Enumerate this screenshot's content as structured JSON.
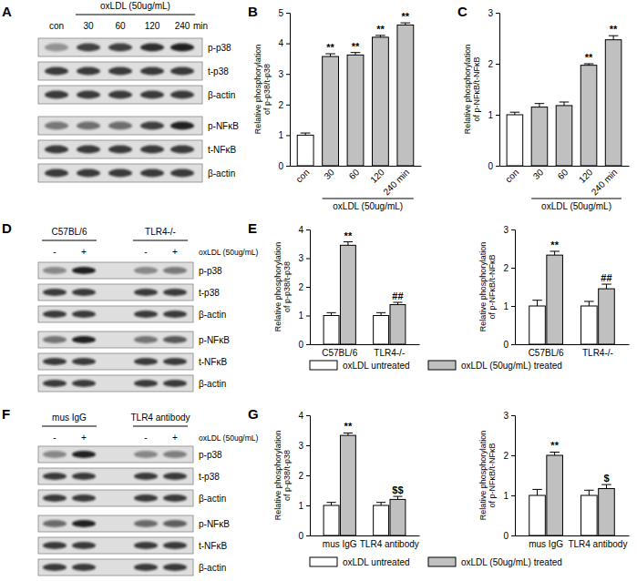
{
  "chart_data": [
    {
      "panel": "B",
      "type": "bar",
      "categories": [
        "con",
        "30",
        "60",
        "120",
        "240 min"
      ],
      "xlabel": "oxLDL (50ug/mL)",
      "ylabel": [
        "Relative phosphorylation",
        "of p-p38/t-p38"
      ],
      "values": [
        1.0,
        3.57,
        3.62,
        4.2,
        4.6
      ],
      "errors": [
        0.07,
        0.09,
        0.08,
        0.06,
        0.07
      ],
      "colors": [
        "#ffffff",
        "#c0c0c0",
        "#c0c0c0",
        "#c0c0c0",
        "#c0c0c0"
      ],
      "significance": [
        null,
        "**",
        "**",
        "**",
        "**"
      ],
      "ylim": [
        0,
        5
      ],
      "yticks": [
        0,
        1,
        2,
        3,
        4,
        5
      ]
    },
    {
      "panel": "C",
      "type": "bar",
      "categories": [
        "con",
        "30",
        "60",
        "120",
        "240 min"
      ],
      "xlabel": "oxLDL (50ug/mL)",
      "ylabel": [
        "Relative phosphorylation",
        "of p-NFκB/t-NFκB"
      ],
      "values": [
        1.0,
        1.15,
        1.18,
        1.97,
        2.47
      ],
      "errors": [
        0.05,
        0.07,
        0.07,
        0.03,
        0.08
      ],
      "colors": [
        "#ffffff",
        "#c0c0c0",
        "#c0c0c0",
        "#c0c0c0",
        "#c0c0c0"
      ],
      "significance": [
        null,
        null,
        null,
        "**",
        "**"
      ],
      "ylim": [
        0,
        3
      ],
      "yticks": [
        0,
        1,
        2,
        3
      ]
    },
    {
      "panel": "E",
      "type": "bar",
      "categories": [
        "C57BL/6",
        "TLR4-/-"
      ],
      "ylabel": [
        "Relative phosphorylation",
        "of p-p38/t-p38"
      ],
      "series": [
        {
          "name": "oxLDL untreated",
          "color": "#ffffff",
          "values": [
            1.0,
            1.0
          ],
          "errors": [
            0.1,
            0.1
          ],
          "significance": [
            null,
            null
          ]
        },
        {
          "name": "oxLDL (50ug/mL) treated",
          "color": "#c0c0c0",
          "values": [
            3.45,
            1.38
          ],
          "errors": [
            0.12,
            0.08
          ],
          "significance": [
            "**",
            "##"
          ]
        }
      ],
      "ylim": [
        0,
        4
      ],
      "yticks": [
        0,
        1,
        2,
        3,
        4
      ]
    },
    {
      "type": "bar",
      "categories": [
        "C57BL/6",
        "TLR4-/-"
      ],
      "ylabel": [
        "Relative phosphorylation",
        "of p-NFκB/t-NFκB"
      ],
      "series": [
        {
          "color": "#ffffff",
          "values": [
            1.0,
            1.0
          ],
          "errors": [
            0.15,
            0.12
          ],
          "significance": [
            null,
            null
          ]
        },
        {
          "color": "#c0c0c0",
          "values": [
            2.33,
            1.45
          ],
          "errors": [
            0.1,
            0.12
          ],
          "significance": [
            "**",
            "##"
          ]
        }
      ],
      "ylim": [
        0,
        3
      ],
      "yticks": [
        0,
        1,
        2,
        3
      ]
    },
    {
      "panel": "G",
      "type": "bar",
      "categories": [
        "mus IgG",
        "TLR4 antibody"
      ],
      "ylabel": [
        "Relative phosphorylation",
        "of p-p38/t-p38"
      ],
      "series": [
        {
          "name": "oxLDL untreated",
          "color": "#ffffff",
          "values": [
            1.0,
            1.0
          ],
          "errors": [
            0.1,
            0.1
          ],
          "significance": [
            null,
            null
          ]
        },
        {
          "name": "oxLDL (50ug/mL) treated",
          "color": "#c0c0c0",
          "values": [
            3.33,
            1.2
          ],
          "errors": [
            0.08,
            0.1
          ],
          "significance": [
            "**",
            "$$"
          ]
        }
      ],
      "ylim": [
        0,
        4
      ],
      "yticks": [
        0,
        1,
        2,
        3,
        4
      ]
    },
    {
      "type": "bar",
      "categories": [
        "mus IgG",
        "TLR4 antibody"
      ],
      "ylabel": [
        "Relative phosphorylation",
        "of p-NFκB/t-NFκB"
      ],
      "series": [
        {
          "color": "#ffffff",
          "values": [
            1.0,
            1.0
          ],
          "errors": [
            0.15,
            0.13
          ],
          "significance": [
            null,
            null
          ]
        },
        {
          "color": "#c0c0c0",
          "values": [
            2.0,
            1.17
          ],
          "errors": [
            0.08,
            0.1
          ],
          "significance": [
            "**",
            "$"
          ]
        }
      ],
      "ylim": [
        0,
        3
      ],
      "yticks": [
        0,
        1,
        2,
        3
      ]
    }
  ],
  "blots": [
    {
      "panel": "A",
      "header": "oxLDL (50ug/mL)",
      "lanes": [
        "con",
        "30",
        "60",
        "120",
        "240"
      ],
      "unit": "min",
      "rows": [
        "p-p38",
        "t-p38",
        "β-actin",
        "p-NFκB",
        "t-NFκB",
        "β-actin"
      ]
    },
    {
      "panel": "D",
      "groups": [
        "C57BL/6",
        "TLR4-/-"
      ],
      "treatment": "oxLDL (50ug/mL)",
      "lanes": [
        "-",
        "+",
        "-",
        "+"
      ],
      "rows": [
        "p-p38",
        "t-p38",
        "β-actin",
        "p-NFκB",
        "t-NFκB",
        "β-actin"
      ]
    },
    {
      "panel": "F",
      "groups": [
        "mus IgG",
        "TLR4 antibody"
      ],
      "treatment": "oxLDL (50ug/mL)",
      "lanes": [
        "-",
        "+",
        "-",
        "+"
      ],
      "rows": [
        "p-p38",
        "t-p38",
        "β-actin",
        "p-NFκB",
        "t-NFκB",
        "β-actin"
      ]
    }
  ]
}
